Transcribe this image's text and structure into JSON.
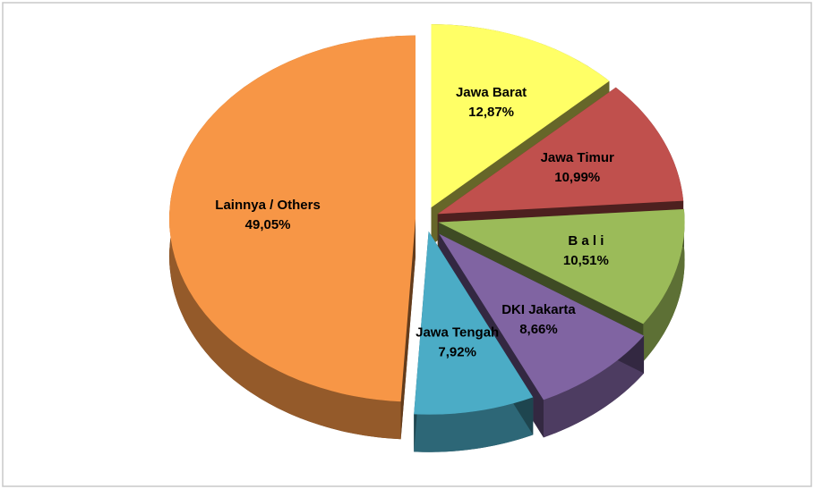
{
  "chart_data": {
    "type": "pie",
    "categories": [
      "Jawa Barat",
      "Jawa Timur",
      "B a l i",
      "DKI Jakarta",
      "Jawa Tengah",
      "Lainnya / Others"
    ],
    "values": [
      12.87,
      10.99,
      10.51,
      8.66,
      7.92,
      49.05
    ],
    "value_labels": [
      "12,87%",
      "10,99%",
      "10,51%",
      "8,66%",
      "7,92%",
      "49,05%"
    ],
    "colors": [
      "#ffff66",
      "#c0504d",
      "#9bbb59",
      "#8064a2",
      "#4bacc6",
      "#f79646"
    ]
  }
}
